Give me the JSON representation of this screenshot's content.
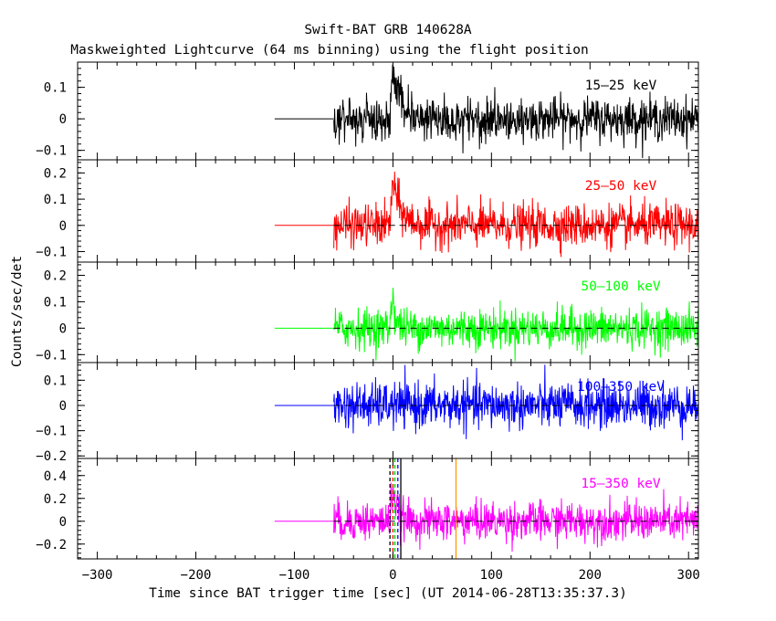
{
  "chart_data": {
    "type": "line",
    "title": "Swift-BAT GRB 140628A",
    "subtitle": "Maskweighted Lightcurve (64 ms binning) using the flight position",
    "xlabel": "Time since BAT trigger time [sec] (UT 2014-06-28T13:35:37.3)",
    "ylabel": "Counts/sec/det",
    "xlim": [
      -320,
      310
    ],
    "xticks": [
      -300,
      -200,
      -100,
      0,
      100,
      200,
      300
    ],
    "xtick_labels": [
      "−300",
      "−200",
      "−100",
      "0",
      "100",
      "200",
      "300"
    ],
    "data_start": -120,
    "noise_start": -60,
    "panels": [
      {
        "label": "15–25 keV",
        "color": "#000000",
        "ylim": [
          -0.13,
          0.18
        ],
        "yticks": [
          -0.1,
          0,
          0.1
        ],
        "ytick_labels": [
          "−0.1",
          "0",
          "0.1"
        ],
        "noise_sigma": 0.033,
        "peak": 0.15,
        "decay": 10,
        "zero_line": "solid",
        "markers": []
      },
      {
        "label": "25–50 keV",
        "color": "#ff0000",
        "ylim": [
          -0.14,
          0.25
        ],
        "yticks": [
          -0.1,
          0,
          0.1,
          0.2
        ],
        "ytick_labels": [
          "−0.1",
          "0",
          "0.1",
          "0.2"
        ],
        "noise_sigma": 0.04,
        "peak": 0.19,
        "decay": 8,
        "zero_line": "dashed",
        "markers": []
      },
      {
        "label": "50–100 keV",
        "color": "#00ff00",
        "ylim": [
          -0.13,
          0.25
        ],
        "yticks": [
          -0.1,
          0,
          0.1,
          0.2
        ],
        "ytick_labels": [
          "−0.1",
          "0",
          "0.1",
          "0.2"
        ],
        "noise_sigma": 0.037,
        "peak": 0.16,
        "decay": 3,
        "zero_line": "dashed",
        "markers": []
      },
      {
        "label": "100–350 keV",
        "color": "#0000ff",
        "ylim": [
          -0.21,
          0.17
        ],
        "yticks": [
          -0.2,
          -0.1,
          0,
          0.1
        ],
        "ytick_labels": [
          "−0.2",
          "−0.1",
          "0",
          "0.1"
        ],
        "noise_sigma": 0.045,
        "peak": 0,
        "decay": 1,
        "zero_line": "dashed",
        "markers": []
      },
      {
        "label": "15–350 keV",
        "color": "#ff00ff",
        "ylim": [
          -0.33,
          0.55
        ],
        "yticks": [
          -0.2,
          0,
          0.2,
          0.4
        ],
        "ytick_labels": [
          "−0.2",
          "0",
          "0.2",
          "0.4"
        ],
        "noise_sigma": 0.085,
        "peak": 0.38,
        "decay": 4,
        "zero_line": "dashed",
        "markers": [
          {
            "x": -3,
            "color": "#000000",
            "style": "dashed"
          },
          {
            "x": 0,
            "color": "#ff0000",
            "style": "dashed"
          },
          {
            "x": 2,
            "color": "#00cc00",
            "style": "dashed"
          },
          {
            "x": 5,
            "color": "#0000ff",
            "style": "dashed"
          },
          {
            "x": 8,
            "color": "#000000",
            "style": "solid"
          },
          {
            "x": 64,
            "color": "#ff9900",
            "style": "solid"
          }
        ]
      }
    ]
  }
}
